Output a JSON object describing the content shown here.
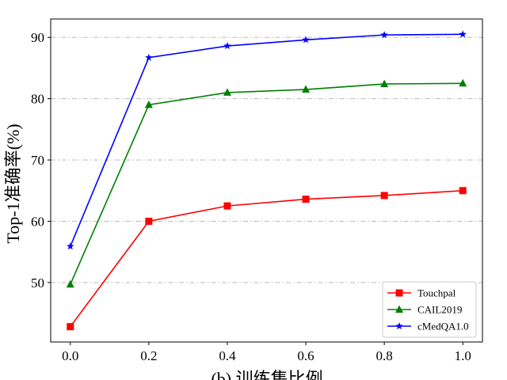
{
  "chart_data": {
    "type": "line",
    "title": "",
    "xlabel": "(b) 训练集比例",
    "ylabel": "Top-1准确率(%)",
    "x": [
      0.0,
      0.2,
      0.4,
      0.6,
      0.8,
      1.0
    ],
    "xlim": [
      -0.05,
      1.05
    ],
    "ylim": [
      40.3,
      93.0
    ],
    "xticks": [
      "0.0",
      "0.2",
      "0.4",
      "0.6",
      "0.8",
      "1.0"
    ],
    "yticks": [
      "50",
      "60",
      "70",
      "80",
      "90"
    ],
    "grid": "y-dashdot",
    "legend_position": "lower-right",
    "series": [
      {
        "name": "Touchpal",
        "color": "#ff0000",
        "marker": "square",
        "values": [
          42.8,
          60.0,
          62.5,
          63.6,
          64.2,
          65.0
        ]
      },
      {
        "name": "CAIL2019",
        "color": "#008000",
        "marker": "triangle",
        "values": [
          49.7,
          79.0,
          81.0,
          81.5,
          82.4,
          82.5
        ]
      },
      {
        "name": "cMedQA1.0",
        "color": "#0000ff",
        "marker": "star",
        "values": [
          55.9,
          86.7,
          88.6,
          89.6,
          90.4,
          90.5
        ]
      }
    ]
  }
}
